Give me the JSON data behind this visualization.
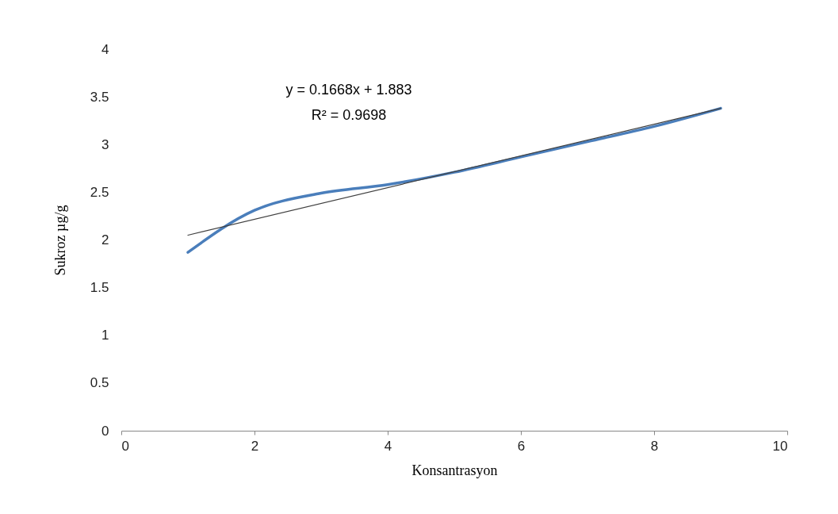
{
  "chart_data": {
    "type": "line",
    "xlabel": "Konsantrasyon",
    "ylabel": "Sukroz µg/g",
    "annotations": [
      "y = 0.1668x + 1.883",
      "R² = 0.9698"
    ],
    "series": [
      {
        "color": "#4a7ebb",
        "x": [
          1,
          2,
          3,
          4,
          5,
          6,
          7,
          8,
          9
        ],
        "values": [
          1.87,
          2.31,
          2.49,
          2.58,
          2.71,
          2.87,
          3.03,
          3.19,
          3.38
        ]
      },
      {
        "type": "line",
        "color": "#404040",
        "x": [
          1,
          9
        ],
        "values": [
          2.05,
          3.38
        ]
      }
    ],
    "xlim": [
      0,
      10
    ],
    "xticks": [
      0,
      2,
      4,
      6,
      8,
      10
    ],
    "ylim": [
      0,
      4
    ],
    "yticks": [
      0,
      0.5,
      1,
      1.5,
      2,
      2.5,
      3,
      3.5,
      4
    ],
    "grid": false,
    "marker": "none",
    "line_style": "solid"
  }
}
